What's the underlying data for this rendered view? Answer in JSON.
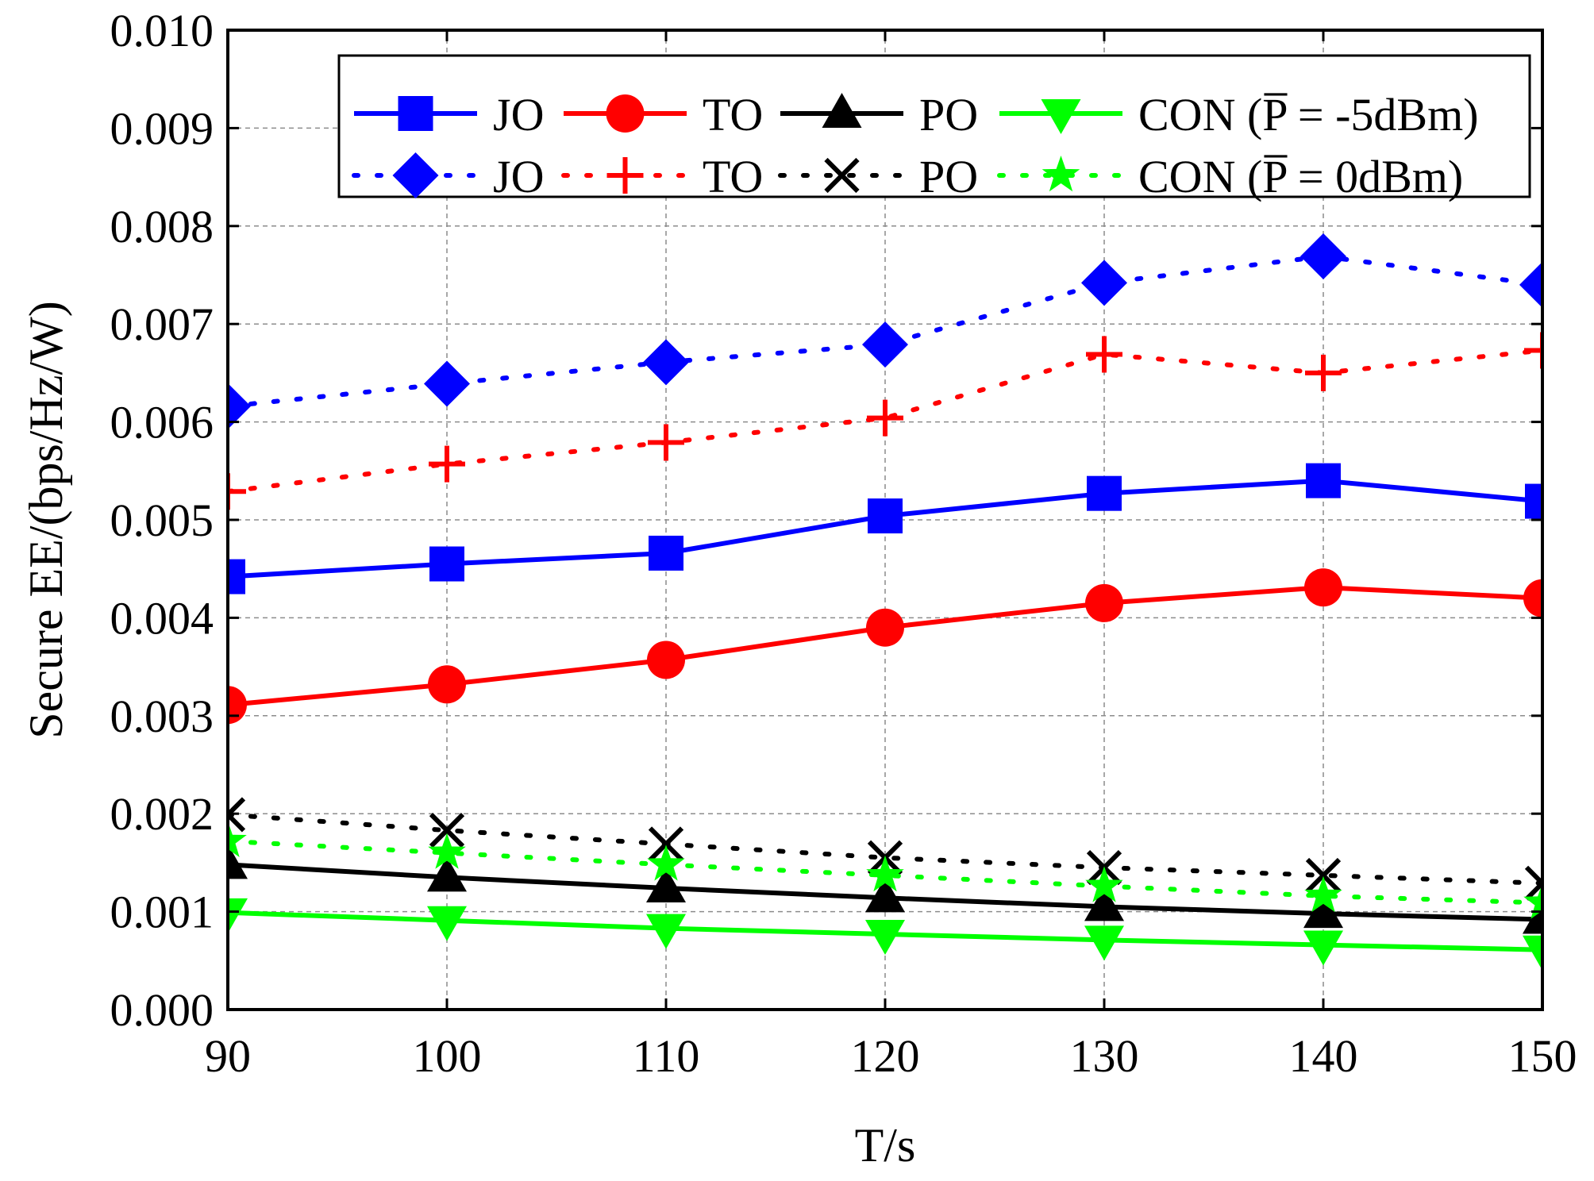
{
  "chart_data": {
    "type": "line",
    "title": "",
    "xlabel": "T/s",
    "ylabel": "Secure EE/(bps/Hz/W)",
    "xlim": [
      90,
      150
    ],
    "ylim": [
      0.0,
      0.01
    ],
    "x": [
      90,
      100,
      110,
      120,
      130,
      140,
      150
    ],
    "x_ticks": [
      "90",
      "100",
      "110",
      "120",
      "130",
      "140",
      "150"
    ],
    "y_ticks": [
      "0.000",
      "0.001",
      "0.002",
      "0.003",
      "0.004",
      "0.005",
      "0.006",
      "0.007",
      "0.008",
      "0.009",
      "0.010"
    ],
    "y_tick_values": [
      0.0,
      0.001,
      0.002,
      0.003,
      0.004,
      0.005,
      0.006,
      0.007,
      0.008,
      0.009,
      0.01
    ],
    "grid": true,
    "legend_position": "top-right",
    "legend_rows": [
      {
        "suffix": "CON  (P̅ = -5dBm)"
      },
      {
        "suffix": "CON  (P̅ = 0dBm)"
      }
    ],
    "series": [
      {
        "name": "JO",
        "power": "-5dBm",
        "color": "#0000ff",
        "dash": "solid",
        "marker": "square",
        "values": [
          0.00442,
          0.00455,
          0.00466,
          0.00504,
          0.00527,
          0.0054,
          0.00519
        ]
      },
      {
        "name": "TO",
        "power": "-5dBm",
        "color": "#ff0000",
        "dash": "solid",
        "marker": "circle",
        "values": [
          0.00311,
          0.00332,
          0.00357,
          0.0039,
          0.00415,
          0.00431,
          0.0042
        ]
      },
      {
        "name": "PO",
        "power": "-5dBm",
        "color": "#000000",
        "dash": "solid",
        "marker": "triangle-up",
        "values": [
          0.00148,
          0.00135,
          0.00124,
          0.00114,
          0.00105,
          0.00098,
          0.00092
        ]
      },
      {
        "name": "CON",
        "power": "-5dBm",
        "color": "#00ff00",
        "dash": "solid",
        "marker": "triangle-down",
        "values": [
          0.00099,
          0.00091,
          0.00083,
          0.00077,
          0.00071,
          0.00066,
          0.00061
        ]
      },
      {
        "name": "JO",
        "power": "0dBm",
        "color": "#0000ff",
        "dash": "dotted",
        "marker": "diamond",
        "values": [
          0.00616,
          0.00639,
          0.00661,
          0.00679,
          0.00742,
          0.00769,
          0.0074
        ]
      },
      {
        "name": "TO",
        "power": "0dBm",
        "color": "#ff0000",
        "dash": "dotted",
        "marker": "plus",
        "values": [
          0.00529,
          0.00557,
          0.00579,
          0.00604,
          0.00669,
          0.0065,
          0.00673
        ]
      },
      {
        "name": "PO",
        "power": "0dBm",
        "color": "#000000",
        "dash": "dotted",
        "marker": "x",
        "values": [
          0.00199,
          0.00183,
          0.00169,
          0.00155,
          0.00145,
          0.00137,
          0.00129
        ]
      },
      {
        "name": "CON",
        "power": "0dBm",
        "color": "#00ff00",
        "dash": "dotted",
        "marker": "star",
        "values": [
          0.00172,
          0.0016,
          0.00148,
          0.00137,
          0.00126,
          0.00116,
          0.00109
        ]
      }
    ]
  }
}
